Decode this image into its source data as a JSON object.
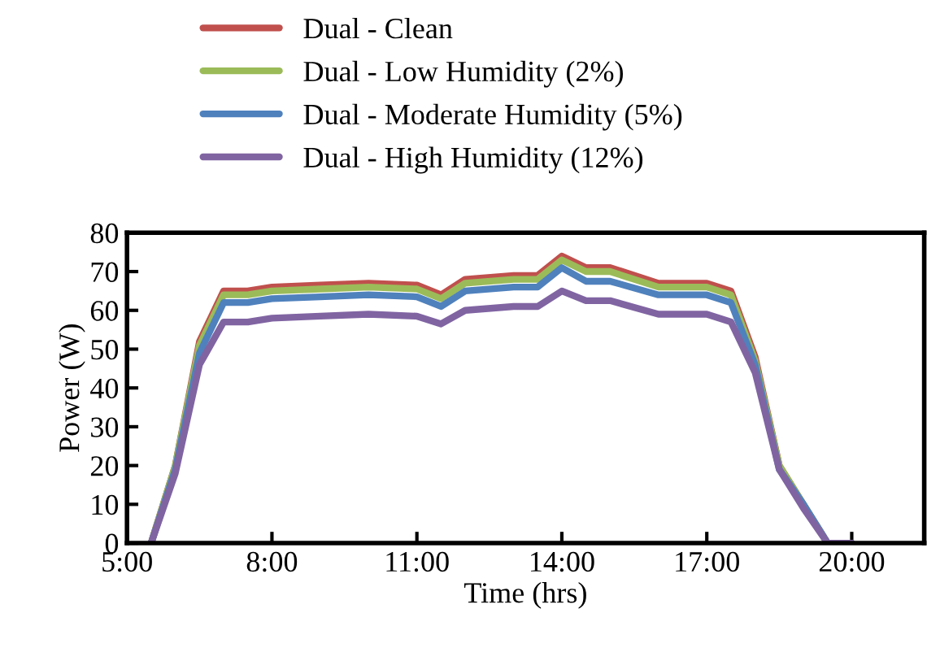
{
  "chart_data": {
    "type": "line",
    "xlabel": "Time (hrs)",
    "ylabel": "Power (W)",
    "x": [
      5.5,
      6.0,
      6.5,
      7.0,
      7.5,
      8,
      9,
      10,
      11,
      11.5,
      12,
      13,
      13.5,
      14,
      14.5,
      15,
      16,
      17,
      17.5,
      18,
      18.5,
      19,
      19.5,
      20
    ],
    "series": [
      {
        "name": "Dual - Clean",
        "color": "#c0504d",
        "values": [
          0,
          20,
          52,
          65,
          65,
          66,
          66.5,
          67,
          66.5,
          64,
          68,
          69,
          69,
          74,
          71,
          71,
          67,
          67,
          65,
          48,
          20,
          10,
          0,
          0
        ]
      },
      {
        "name": "Dual - Low Humidity (2%)",
        "color": "#9bbb59",
        "values": [
          0,
          20,
          51,
          64,
          64,
          65,
          65.5,
          66,
          65.5,
          63,
          67,
          68,
          68,
          73,
          70,
          70,
          66,
          66,
          64,
          47,
          20,
          10,
          0,
          0
        ]
      },
      {
        "name": "Dual - Moderate Humidity (5%)",
        "color": "#4f81bd",
        "values": [
          0,
          19,
          49,
          62,
          62,
          63,
          63.5,
          64,
          63.5,
          61,
          65,
          66,
          66,
          71,
          67.5,
          67.5,
          64,
          64,
          62,
          46,
          19,
          10,
          0,
          0
        ]
      },
      {
        "name": "Dual - High Humidity (12%)",
        "color": "#8064a2",
        "values": [
          0,
          18,
          46,
          57,
          57,
          58,
          58.5,
          59,
          58.5,
          56.5,
          60,
          61,
          61,
          65,
          62.5,
          62.5,
          59,
          59,
          57,
          44,
          19,
          9,
          0,
          0
        ]
      }
    ],
    "xlim": [
      5,
      21.5
    ],
    "xticks": [
      {
        "value": 5,
        "label": "5:00"
      },
      {
        "value": 8,
        "label": "8:00"
      },
      {
        "value": 11,
        "label": "11:00"
      },
      {
        "value": 14,
        "label": "14:00"
      },
      {
        "value": 17,
        "label": "17:00"
      },
      {
        "value": 20,
        "label": "20:00"
      }
    ],
    "ylim": [
      0,
      80
    ],
    "yticks": [
      0,
      10,
      20,
      30,
      40,
      50,
      60,
      70,
      80
    ],
    "grid": false,
    "legend": "top",
    "marker": "none",
    "line_style": "solid"
  }
}
